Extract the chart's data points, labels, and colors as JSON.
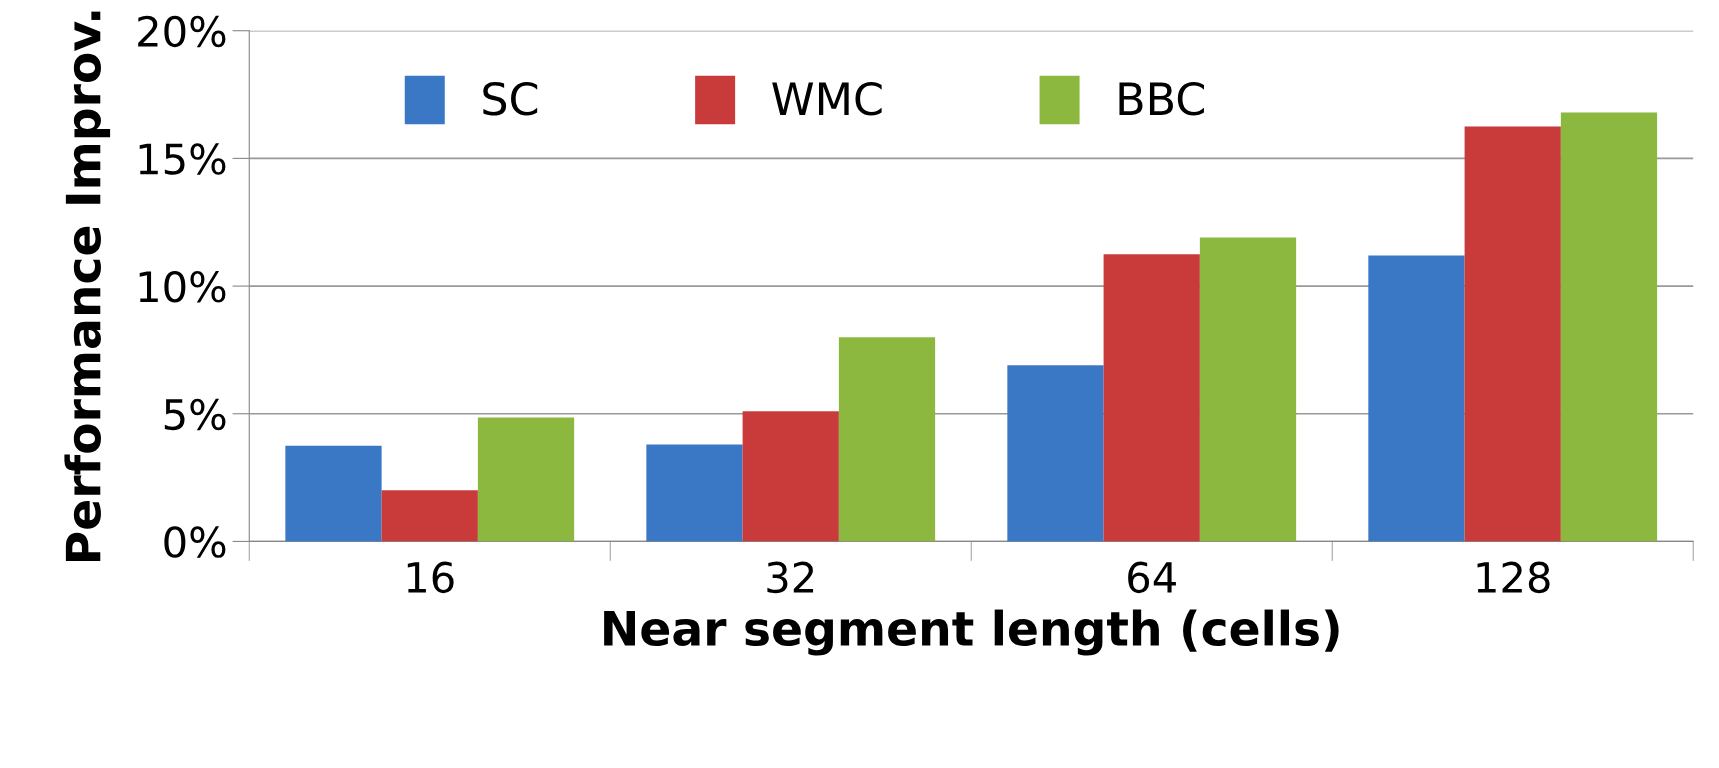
{
  "chart_data": {
    "type": "bar",
    "xlabel": "Near segment length (cells)",
    "ylabel": "Performance Improv.",
    "categories": [
      "16",
      "32",
      "64",
      "128"
    ],
    "series": [
      {
        "name": "SC",
        "color": "#3a78c6",
        "values": [
          3.75,
          3.8,
          6.9,
          11.2
        ]
      },
      {
        "name": "WMC",
        "color": "#c83b3a",
        "values": [
          2.0,
          5.1,
          11.25,
          16.25
        ]
      },
      {
        "name": "BBC",
        "color": "#8cb83f",
        "values": [
          4.85,
          8.0,
          11.9,
          16.8
        ]
      }
    ],
    "ylim": [
      0,
      20
    ],
    "yticks": [
      {
        "value": 0,
        "label": "0%"
      },
      {
        "value": 5,
        "label": "5%"
      },
      {
        "value": 10,
        "label": "10%"
      },
      {
        "value": 15,
        "label": "15%"
      },
      {
        "value": 20,
        "label": "20%"
      }
    ],
    "grid": "y",
    "legend": "top left"
  }
}
